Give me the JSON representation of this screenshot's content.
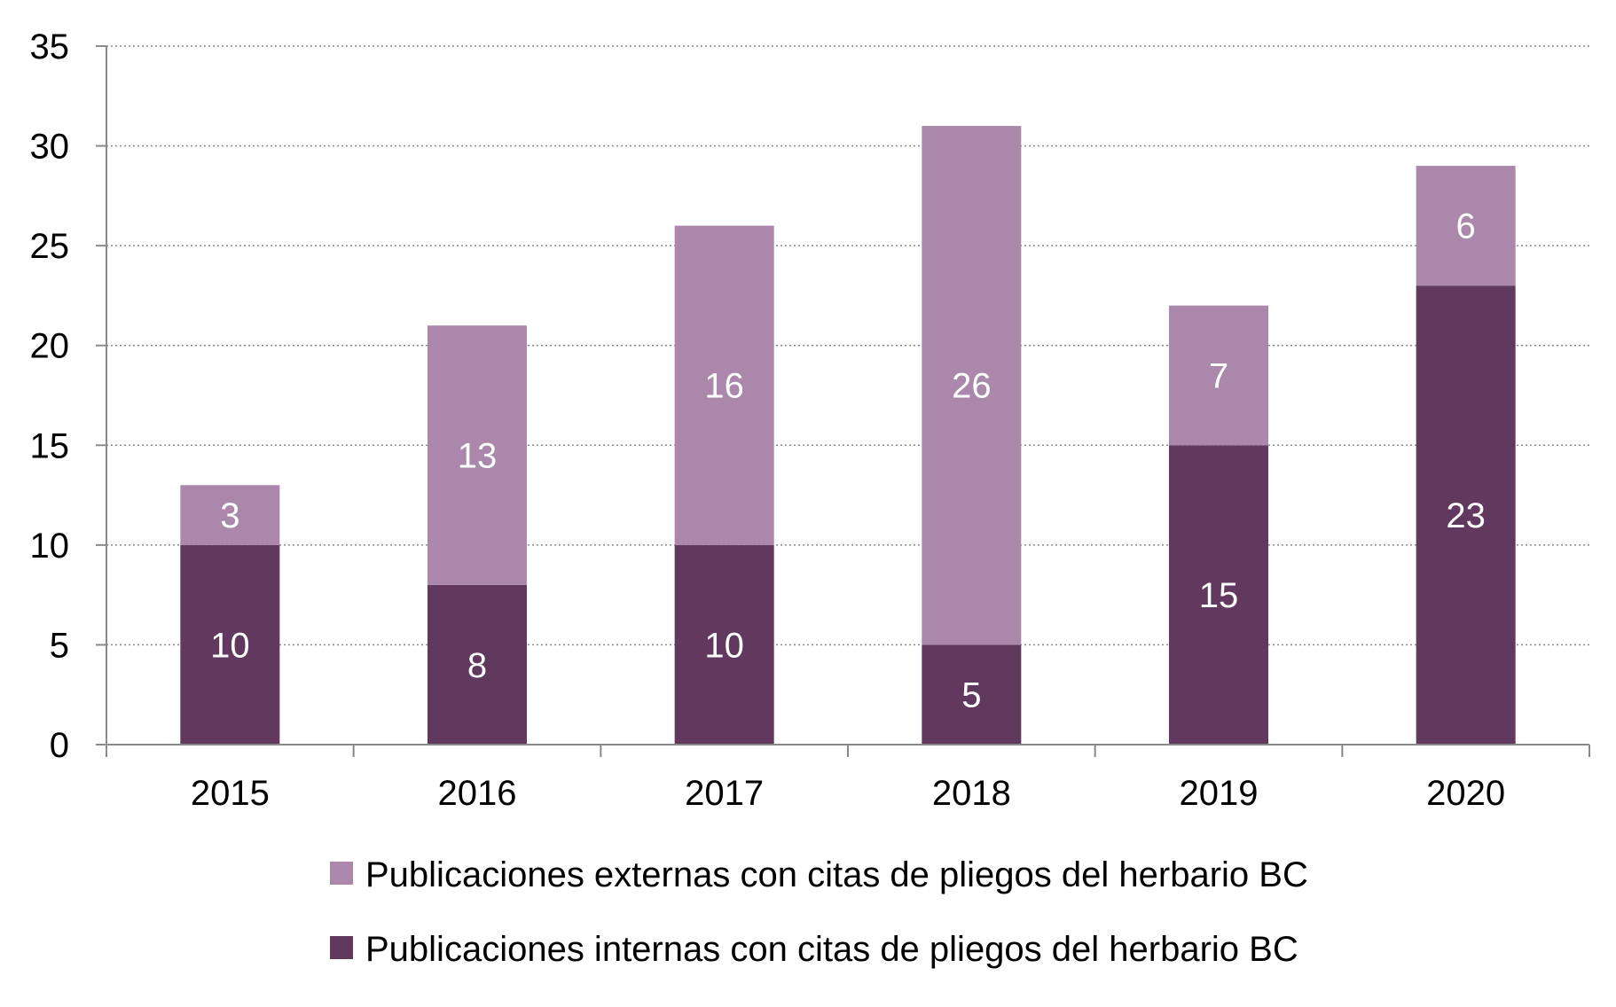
{
  "chart_data": {
    "type": "bar",
    "stacked": true,
    "categories": [
      "2015",
      "2016",
      "2017",
      "2018",
      "2019",
      "2020"
    ],
    "series": [
      {
        "name": "Publicaciones internas con citas de pliegos del herbario BC",
        "color": "#61385e",
        "values": [
          10,
          8,
          10,
          5,
          15,
          23
        ]
      },
      {
        "name": "Publicaciones externas con citas de pliegos del herbario BC",
        "color": "#aa87ab",
        "values": [
          3,
          13,
          16,
          26,
          7,
          6
        ]
      }
    ],
    "ylim": [
      0,
      35
    ],
    "yticks": [
      0,
      5,
      10,
      15,
      20,
      25,
      30,
      35
    ],
    "grid": true,
    "grid_style": "dotted",
    "data_labels": true,
    "legend_position": "bottom",
    "legend_order": [
      1,
      0
    ]
  }
}
